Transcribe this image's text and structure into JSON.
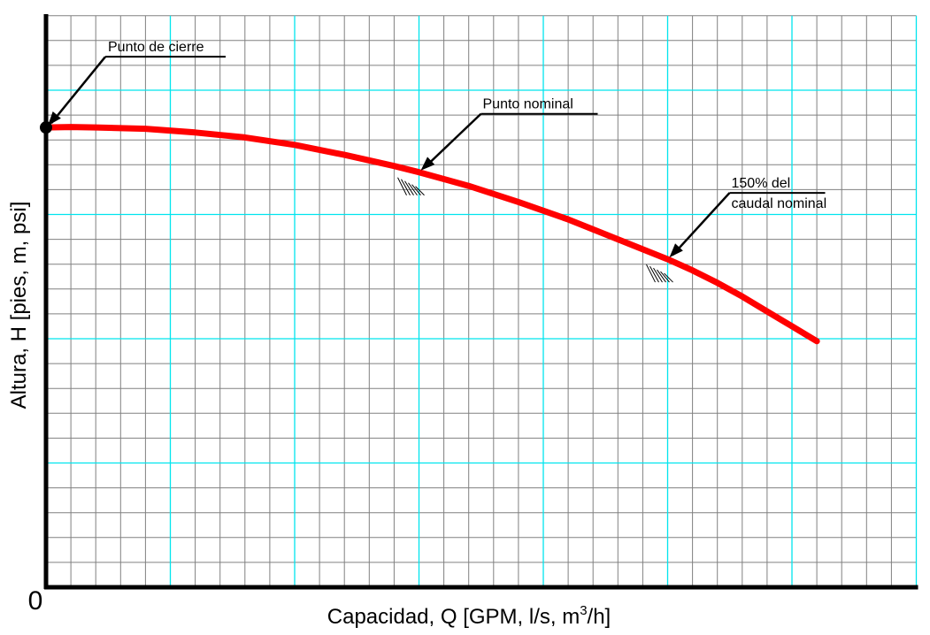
{
  "chart_data": {
    "type": "line",
    "title": "",
    "xlabel": "Capacidad, Q [GPM, l/s, m",
    "xlabel_sup": "3",
    "xlabel_end": "/h]",
    "ylabel": "Altura, H [pies, m, psi]",
    "origin_label": "0",
    "grid": true,
    "grid_minor_color": "#808080",
    "grid_major_color": "#00e5ee",
    "curve_color": "#ff0000",
    "xlim": [
      0,
      35
    ],
    "ylim": [
      0,
      23
    ],
    "series": [
      {
        "x": [
          0,
          1,
          2,
          4,
          6,
          8,
          10,
          12,
          14,
          15,
          17,
          19,
          21,
          23,
          25,
          26,
          27,
          28,
          29,
          30,
          31
        ],
        "y": [
          18.5,
          18.52,
          18.5,
          18.45,
          18.3,
          18.1,
          17.8,
          17.4,
          16.95,
          16.7,
          16.15,
          15.5,
          14.8,
          14.0,
          13.2,
          12.75,
          12.25,
          11.7,
          11.1,
          10.5,
          9.9
        ]
      }
    ],
    "annotations": [
      {
        "lines": [
          "Punto de cierre"
        ],
        "target": [
          0,
          18.5
        ]
      },
      {
        "lines": [
          "Punto nominal"
        ],
        "target": [
          15,
          16.7
        ]
      },
      {
        "lines": [
          "150% del",
          "caudal nominal"
        ],
        "target": [
          25,
          13.2
        ]
      }
    ]
  }
}
